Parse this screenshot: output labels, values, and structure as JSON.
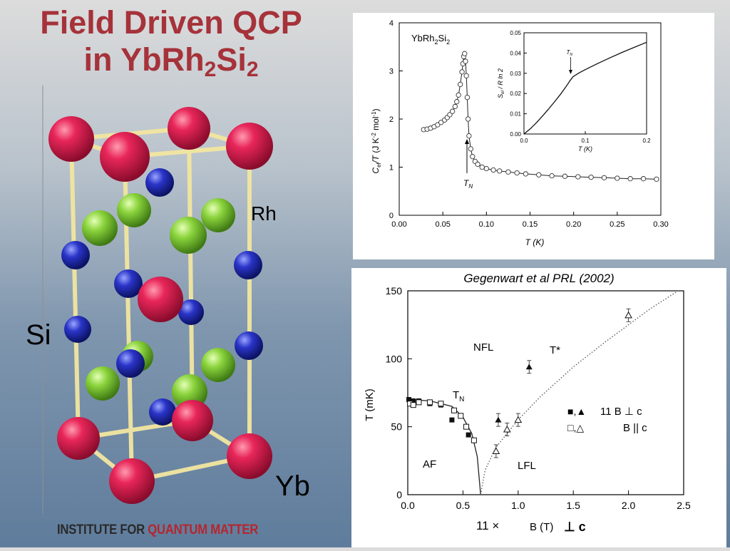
{
  "slide": {
    "title_line1": "Field Driven QCP",
    "title_line2_main": "in YbRh",
    "title_sub1": "2",
    "title_mid": "Si",
    "title_sub2": "2",
    "label_rh": "Rh",
    "label_si": "Si",
    "label_yb": "Yb",
    "logo_part1": "INSTITUTE FOR ",
    "logo_part2": "QUANTUM MATTER",
    "colors": {
      "title": "#a6323a",
      "yb_atom": "#d8204a",
      "rh_atom": "#7ecb3a",
      "si_atom": "#2230b8",
      "bond": "#f2e6a0",
      "logo_accent": "#b4262f"
    }
  },
  "chart_data": [
    {
      "type": "scatter",
      "sample_label": "YbRh2Si2",
      "sample_base": "YbRh",
      "sample_sub1": "2",
      "sample_mid": "Si",
      "sample_sub2": "2",
      "xlabel": "T (K)",
      "ylabel": "C_el/T (J K^-2 mol^-1)",
      "xlim": [
        0,
        0.3
      ],
      "ylim": [
        0,
        4
      ],
      "xticks": [
        "0.00",
        "0.05",
        "0.10",
        "0.15",
        "0.20",
        "0.25",
        "0.30"
      ],
      "yticks": [
        "0",
        "1",
        "2",
        "3",
        "4"
      ],
      "tn_label": "T_N",
      "points": {
        "x": [
          0.028,
          0.032,
          0.036,
          0.04,
          0.044,
          0.048,
          0.052,
          0.055,
          0.058,
          0.061,
          0.064,
          0.066,
          0.068,
          0.07,
          0.072,
          0.073,
          0.074,
          0.075,
          0.076,
          0.077,
          0.078,
          0.079,
          0.08,
          0.082,
          0.084,
          0.087,
          0.09,
          0.095,
          0.1,
          0.108,
          0.115,
          0.125,
          0.135,
          0.145,
          0.16,
          0.175,
          0.19,
          0.205,
          0.22,
          0.235,
          0.25,
          0.265,
          0.28,
          0.295
        ],
        "y": [
          1.78,
          1.79,
          1.81,
          1.84,
          1.88,
          1.93,
          1.98,
          2.03,
          2.09,
          2.16,
          2.26,
          2.36,
          2.5,
          2.72,
          2.98,
          3.15,
          3.3,
          3.36,
          3.2,
          2.9,
          2.45,
          2.0,
          1.65,
          1.38,
          1.22,
          1.12,
          1.06,
          1.0,
          0.97,
          0.94,
          0.92,
          0.9,
          0.88,
          0.86,
          0.84,
          0.82,
          0.81,
          0.8,
          0.79,
          0.78,
          0.77,
          0.76,
          0.76,
          0.75
        ]
      },
      "inset": {
        "xlabel": "T (K)",
        "ylabel": "S_el / R ln 2",
        "xlim": [
          0,
          0.2
        ],
        "ylim": [
          0,
          0.05
        ],
        "xticks": [
          "0.0",
          "0.1",
          "0.2"
        ],
        "yticks": [
          "0.00",
          "0.01",
          "0.02",
          "0.03",
          "0.04",
          "0.05"
        ],
        "tn_label": "T_N",
        "x": [
          0.0,
          0.01,
          0.02,
          0.03,
          0.04,
          0.05,
          0.06,
          0.07,
          0.075,
          0.08,
          0.09,
          0.1,
          0.12,
          0.14,
          0.16,
          0.18,
          0.2
        ],
        "y": [
          0.0,
          0.0025,
          0.0055,
          0.0088,
          0.0123,
          0.016,
          0.0198,
          0.024,
          0.0263,
          0.0283,
          0.0302,
          0.0318,
          0.0348,
          0.0376,
          0.0403,
          0.0428,
          0.0453
        ]
      }
    },
    {
      "type": "scatter",
      "caption": "Gegenwart et al PRL (2002)",
      "xlabel": "B (T)",
      "ylabel": "T (mK)",
      "xlim": [
        0,
        2.5
      ],
      "ylim": [
        0,
        150
      ],
      "xticks": [
        "0.0",
        "0.5",
        "1.0",
        "1.5",
        "2.0",
        "2.5"
      ],
      "yticks": [
        "0",
        "50",
        "100",
        "150"
      ],
      "region_labels": {
        "nfl": "NFL",
        "af": "AF",
        "lfl": "LFL",
        "tstar": "T*",
        "tn": "T_N"
      },
      "legend": {
        "filled_symbols": "■,▲",
        "filled_label": "11  B ⊥ c",
        "open_symbols": "□,△",
        "open_label": "B || c"
      },
      "below_axis_text": "11 ×",
      "below_axis_suffix": "⊥ c",
      "series": [
        {
          "name": "11 B ⊥ c (squares)",
          "marker": "filled-square",
          "x": [
            0.01,
            0.02,
            0.05,
            0.1,
            0.2,
            0.3,
            0.4,
            0.55
          ],
          "y": [
            70,
            68,
            69,
            69,
            67,
            66,
            55,
            44
          ]
        },
        {
          "name": "11 B ⊥ c (triangles)",
          "marker": "filled-triangle",
          "x": [
            0.82,
            1.1
          ],
          "y": [
            55,
            94
          ]
        },
        {
          "name": "B || c (squares)",
          "marker": "open-square",
          "x": [
            0.02,
            0.05,
            0.1,
            0.2,
            0.3,
            0.42,
            0.48,
            0.53,
            0.6
          ],
          "y": [
            67,
            66,
            68,
            68,
            67,
            62,
            58,
            50,
            40
          ]
        },
        {
          "name": "B || c (triangles)",
          "marker": "open-triangle",
          "x": [
            0.8,
            0.9,
            1.0,
            2.0
          ],
          "y": [
            32,
            48,
            55,
            132
          ]
        },
        {
          "name": "AF phase boundary",
          "style": "solid-line",
          "x": [
            0,
            0.2,
            0.4,
            0.5,
            0.58,
            0.63,
            0.66
          ],
          "y": [
            70,
            69,
            65,
            57,
            45,
            28,
            0
          ]
        },
        {
          "name": "T* crossover",
          "style": "dotted-line",
          "x": [
            0.66,
            0.7,
            0.8,
            1.0,
            1.2,
            1.5,
            1.8,
            2.0,
            2.2,
            2.45
          ],
          "y": [
            0,
            18,
            35,
            55,
            72,
            94,
            113,
            125,
            137,
            150
          ]
        }
      ]
    }
  ]
}
